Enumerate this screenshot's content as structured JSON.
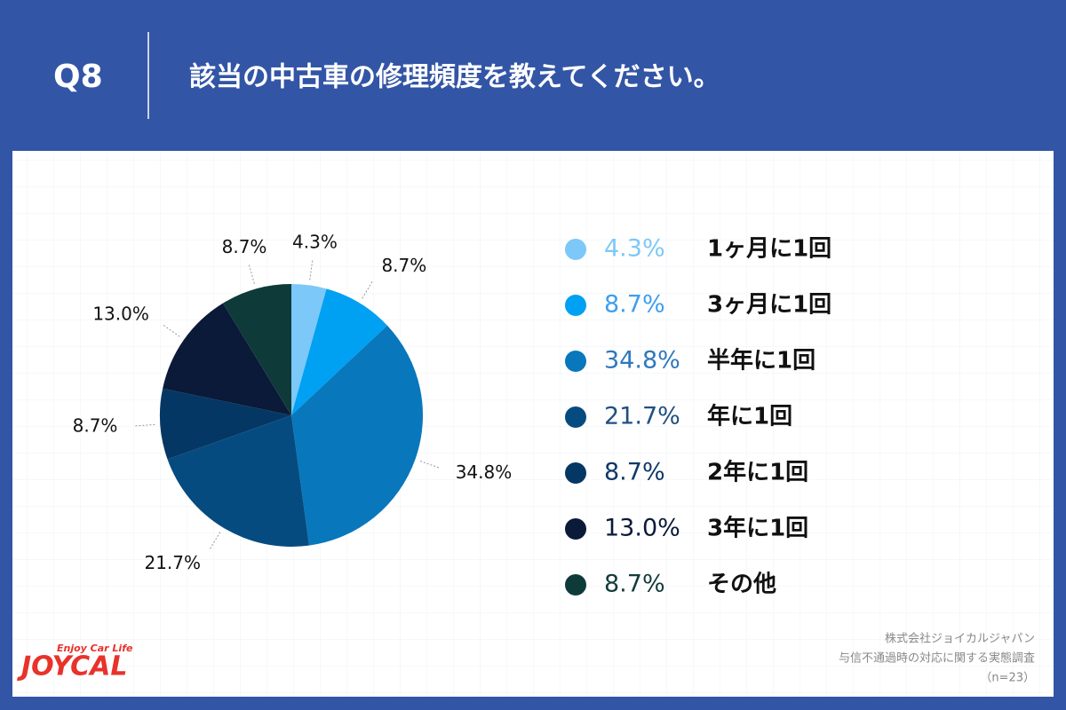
{
  "chart_data": {
    "type": "pie",
    "question_number": "Q8",
    "title": "該当の中古車の修理頻度を教えてください。",
    "categories": [
      "1ヶ月に1回",
      "3ヶ月に1回",
      "半年に1回",
      "年に1回",
      "2年に1回",
      "3年に1回",
      "その他"
    ],
    "values": [
      4.3,
      8.7,
      34.8,
      21.7,
      8.7,
      13.0,
      8.7
    ],
    "value_labels": [
      "4.3%",
      "8.7%",
      "34.8%",
      "21.7%",
      "8.7%",
      "13.0%",
      "8.7%"
    ],
    "colors": [
      "#7cc8f8",
      "#00a0f2",
      "#0877bb",
      "#064b80",
      "#053764",
      "#0a1a38",
      "#0f3a3a"
    ],
    "legend_text_colors": [
      "#7cc8f8",
      "#3d9ff0",
      "#2f78bd",
      "#1f4f84",
      "#10386a",
      "#0a1a38",
      "#143c3c"
    ],
    "notes": [
      "株式会社ジョイカルジャパン",
      "与信不通過時の対応に関する実態調査",
      "（n=23）"
    ],
    "brand": {
      "tagline": "Enjoy Car Life",
      "name": "JOYCAL"
    }
  }
}
